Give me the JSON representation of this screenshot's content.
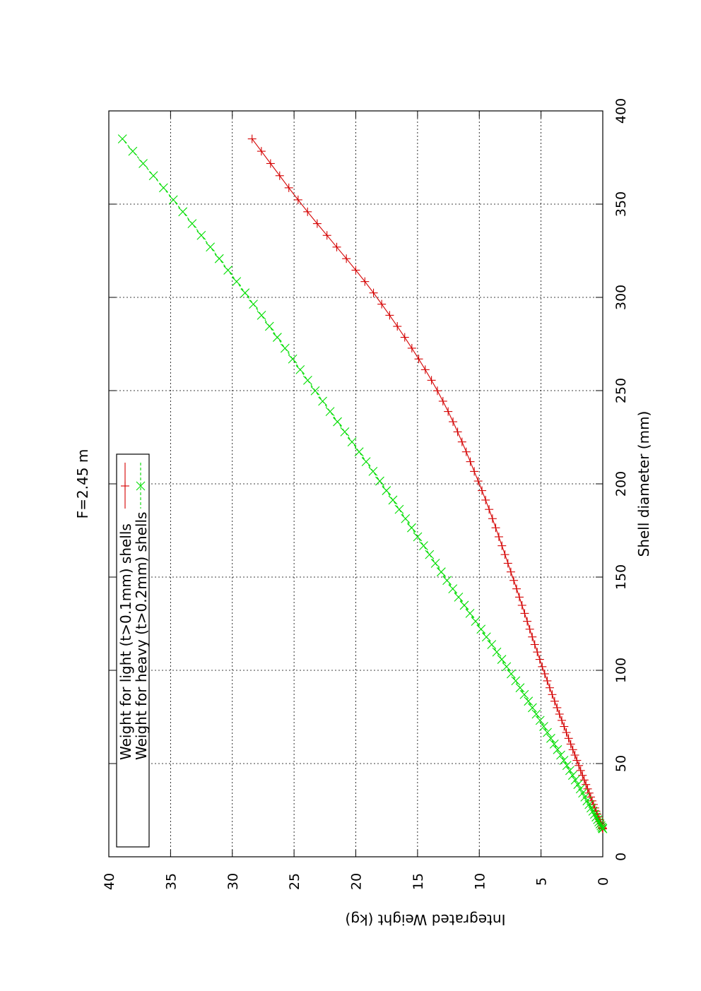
{
  "chart_data": {
    "type": "line",
    "title": "F=2.45 m",
    "xlabel": "Shell diameter (mm)",
    "ylabel": "Integrated Weight (kg)",
    "xlim": [
      0,
      400
    ],
    "ylim": [
      0,
      40
    ],
    "x_ticks": [
      "0",
      "50",
      "100",
      "150",
      "200",
      "250",
      "300",
      "350",
      "400"
    ],
    "y_ticks": [
      "0",
      "5",
      "10",
      "15",
      "20",
      "25",
      "30",
      "35",
      "40"
    ],
    "grid": true,
    "legend_position": "top-left",
    "orientation": "rotated 90 degrees counter-clockwise",
    "series": [
      {
        "name": "Weight for light (t>0.1mm) shells",
        "color": "#d40000",
        "marker": "plus",
        "line_style": "solid",
        "x": [
          15,
          50,
          100,
          150,
          200,
          250,
          300,
          350,
          385
        ],
        "y": [
          0,
          2.0,
          4.8,
          7.3,
          10.0,
          13.4,
          18.3,
          24.4,
          28.4
        ]
      },
      {
        "name": "Weight for heavy (t>0.2mm) shells",
        "color": "#00dd00",
        "marker": "cross",
        "line_style": "dashed",
        "x": [
          15,
          50,
          100,
          150,
          200,
          250,
          300,
          350,
          385
        ],
        "y": [
          0,
          3.0,
          7.6,
          12.8,
          17.9,
          23.3,
          28.7,
          34.5,
          38.9
        ]
      }
    ]
  }
}
